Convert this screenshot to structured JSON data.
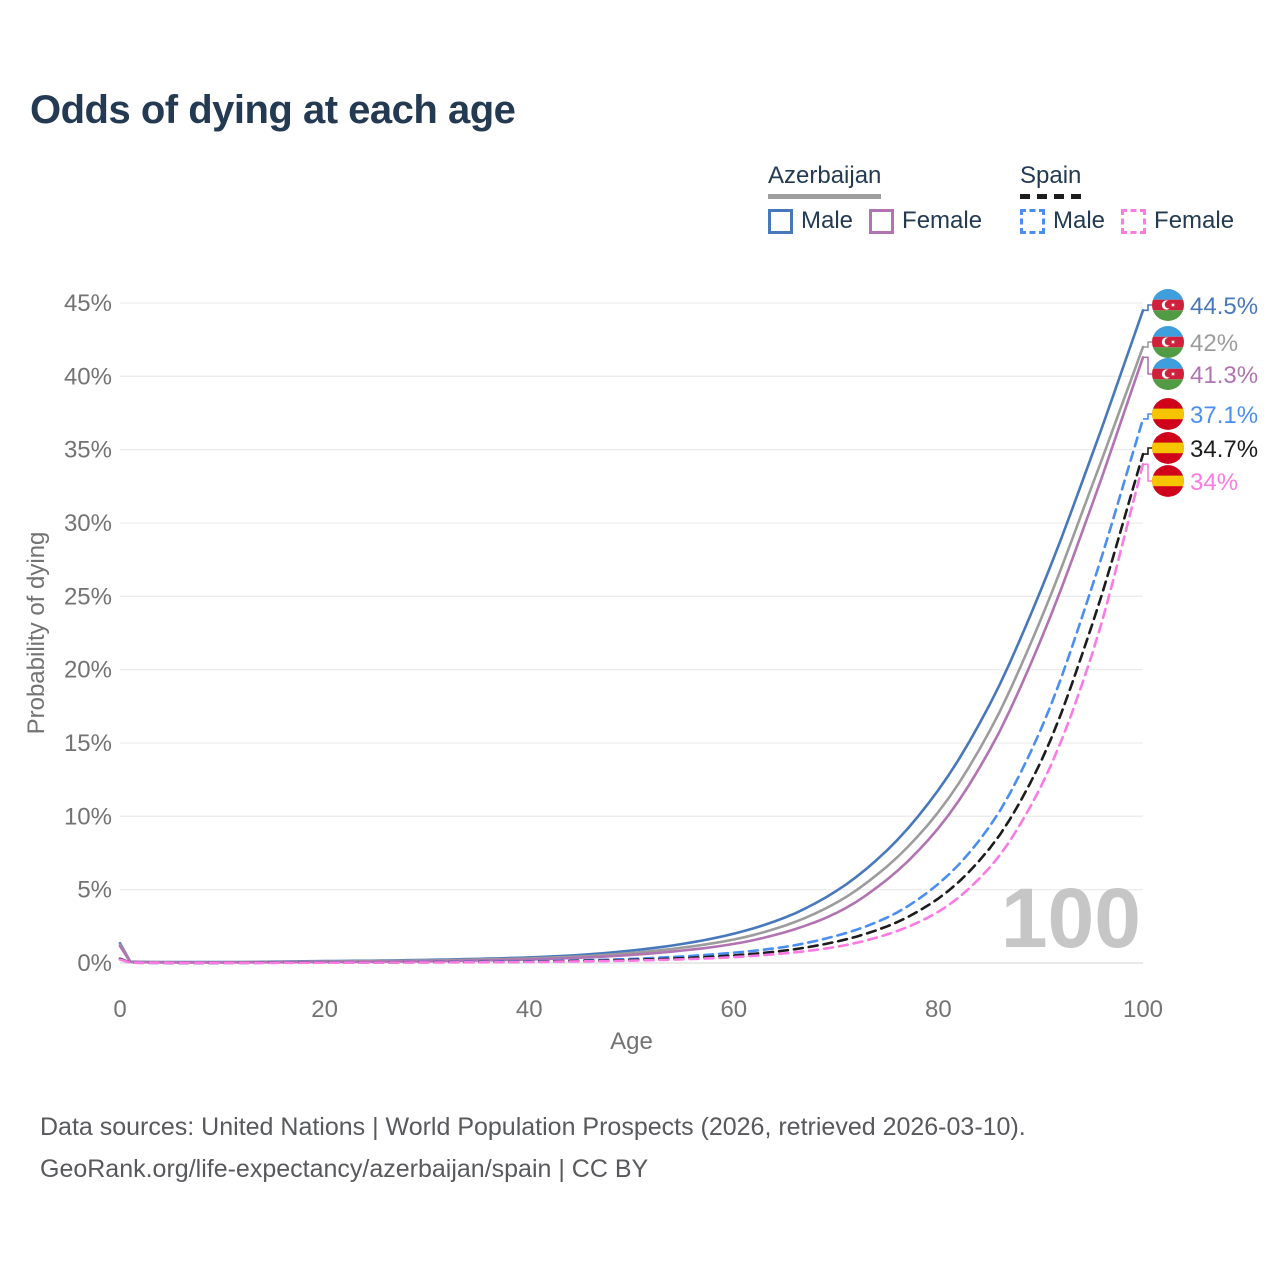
{
  "title": "Odds of dying at each age",
  "legend": {
    "groups": [
      {
        "label": "Azerbaijan",
        "line_style": "solid",
        "underline_color": "#9e9e9e",
        "items": [
          {
            "label": "Male",
            "color": "#4878bc"
          },
          {
            "label": "Female",
            "color": "#b273b2"
          }
        ]
      },
      {
        "label": "Spain",
        "line_style": "dashed",
        "underline_color": "#1c1c1c",
        "items": [
          {
            "label": "Male",
            "color": "#4a8ef2"
          },
          {
            "label": "Female",
            "color": "#fb7ae3"
          }
        ]
      }
    ]
  },
  "chart_data": {
    "type": "line",
    "title": "Odds of dying at each age",
    "xlabel": "Age",
    "ylabel": "Probability of dying",
    "xlim": [
      0,
      100
    ],
    "ylim": [
      0,
      45
    ],
    "x_ticks": [
      0,
      20,
      40,
      60,
      80,
      100
    ],
    "y_tick_labels": [
      "0%",
      "5%",
      "10%",
      "15%",
      "20%",
      "25%",
      "30%",
      "35%",
      "40%",
      "45%"
    ],
    "grid": "horizontal",
    "legend_position": "top-right",
    "watermark": "100",
    "y_unit": "percent",
    "series": [
      {
        "id": "azerbaijan-male",
        "name": "Azerbaijan Male",
        "country": "Azerbaijan",
        "sex": "Male",
        "color": "#4878bc",
        "dash": false,
        "end_label": "44.5%",
        "flag": "azerbaijan",
        "points": [
          [
            0,
            1.35
          ],
          [
            1,
            0.1
          ],
          [
            5,
            0.06
          ],
          [
            10,
            0.06
          ],
          [
            15,
            0.09
          ],
          [
            20,
            0.13
          ],
          [
            25,
            0.16
          ],
          [
            30,
            0.21
          ],
          [
            35,
            0.28
          ],
          [
            40,
            0.38
          ],
          [
            45,
            0.55
          ],
          [
            50,
            0.85
          ],
          [
            55,
            1.3
          ],
          [
            60,
            2.0
          ],
          [
            65,
            3.1
          ],
          [
            70,
            4.9
          ],
          [
            75,
            7.7
          ],
          [
            80,
            11.8
          ],
          [
            85,
            17.6
          ],
          [
            90,
            25.4
          ],
          [
            95,
            34.6
          ],
          [
            100,
            44.5
          ]
        ]
      },
      {
        "id": "azerbaijan-both",
        "name": "Azerbaijan",
        "country": "Azerbaijan",
        "sex": "Both",
        "color": "#9c9c9c",
        "dash": false,
        "end_label": "42%",
        "flag": "azerbaijan",
        "points": [
          [
            0,
            1.25
          ],
          [
            1,
            0.09
          ],
          [
            5,
            0.05
          ],
          [
            10,
            0.05
          ],
          [
            15,
            0.07
          ],
          [
            20,
            0.1
          ],
          [
            25,
            0.13
          ],
          [
            30,
            0.17
          ],
          [
            35,
            0.23
          ],
          [
            40,
            0.31
          ],
          [
            45,
            0.45
          ],
          [
            50,
            0.68
          ],
          [
            55,
            1.05
          ],
          [
            60,
            1.6
          ],
          [
            65,
            2.55
          ],
          [
            70,
            4.1
          ],
          [
            75,
            6.6
          ],
          [
            80,
            10.3
          ],
          [
            85,
            15.8
          ],
          [
            90,
            23.4
          ],
          [
            95,
            32.5
          ],
          [
            100,
            42.0
          ]
        ]
      },
      {
        "id": "azerbaijan-female",
        "name": "Azerbaijan Female",
        "country": "Azerbaijan",
        "sex": "Female",
        "color": "#b273b2",
        "dash": false,
        "end_label": "41.3%",
        "flag": "azerbaijan",
        "points": [
          [
            0,
            1.15
          ],
          [
            1,
            0.08
          ],
          [
            5,
            0.04
          ],
          [
            10,
            0.04
          ],
          [
            15,
            0.05
          ],
          [
            20,
            0.07
          ],
          [
            25,
            0.09
          ],
          [
            30,
            0.12
          ],
          [
            35,
            0.17
          ],
          [
            40,
            0.24
          ],
          [
            45,
            0.36
          ],
          [
            50,
            0.55
          ],
          [
            55,
            0.85
          ],
          [
            60,
            1.3
          ],
          [
            65,
            2.1
          ],
          [
            70,
            3.4
          ],
          [
            75,
            5.7
          ],
          [
            80,
            9.2
          ],
          [
            85,
            14.5
          ],
          [
            90,
            22.0
          ],
          [
            95,
            31.2
          ],
          [
            100,
            41.3
          ]
        ]
      },
      {
        "id": "spain-male",
        "name": "Spain Male",
        "country": "Spain",
        "sex": "Male",
        "color": "#4a8ef2",
        "dash": true,
        "end_label": "37.1%",
        "flag": "spain",
        "points": [
          [
            0,
            0.3
          ],
          [
            1,
            0.03
          ],
          [
            5,
            0.01
          ],
          [
            10,
            0.01
          ],
          [
            15,
            0.02
          ],
          [
            20,
            0.04
          ],
          [
            25,
            0.05
          ],
          [
            30,
            0.06
          ],
          [
            35,
            0.08
          ],
          [
            40,
            0.12
          ],
          [
            45,
            0.18
          ],
          [
            50,
            0.28
          ],
          [
            55,
            0.45
          ],
          [
            60,
            0.7
          ],
          [
            65,
            1.1
          ],
          [
            70,
            1.85
          ],
          [
            75,
            3.1
          ],
          [
            80,
            5.4
          ],
          [
            85,
            9.3
          ],
          [
            90,
            15.9
          ],
          [
            95,
            25.6
          ],
          [
            100,
            37.1
          ]
        ]
      },
      {
        "id": "spain-both",
        "name": "Spain",
        "country": "Spain",
        "sex": "Both",
        "color": "#1c1c1c",
        "dash": true,
        "end_label": "34.7%",
        "flag": "spain",
        "points": [
          [
            0,
            0.27
          ],
          [
            1,
            0.02
          ],
          [
            5,
            0.01
          ],
          [
            10,
            0.01
          ],
          [
            15,
            0.02
          ],
          [
            20,
            0.03
          ],
          [
            25,
            0.04
          ],
          [
            30,
            0.05
          ],
          [
            35,
            0.06
          ],
          [
            40,
            0.09
          ],
          [
            45,
            0.14
          ],
          [
            50,
            0.21
          ],
          [
            55,
            0.33
          ],
          [
            60,
            0.52
          ],
          [
            65,
            0.85
          ],
          [
            70,
            1.45
          ],
          [
            75,
            2.5
          ],
          [
            80,
            4.4
          ],
          [
            85,
            7.8
          ],
          [
            90,
            13.7
          ],
          [
            95,
            23.0
          ],
          [
            100,
            34.7
          ]
        ]
      },
      {
        "id": "spain-female",
        "name": "Spain Female",
        "country": "Spain",
        "sex": "Female",
        "color": "#fb7ae3",
        "dash": true,
        "end_label": "34%",
        "flag": "spain",
        "points": [
          [
            0,
            0.24
          ],
          [
            1,
            0.02
          ],
          [
            5,
            0.01
          ],
          [
            10,
            0.01
          ],
          [
            15,
            0.01
          ],
          [
            20,
            0.02
          ],
          [
            25,
            0.03
          ],
          [
            30,
            0.04
          ],
          [
            35,
            0.05
          ],
          [
            40,
            0.07
          ],
          [
            45,
            0.11
          ],
          [
            50,
            0.16
          ],
          [
            55,
            0.25
          ],
          [
            60,
            0.4
          ],
          [
            65,
            0.66
          ],
          [
            70,
            1.1
          ],
          [
            75,
            1.95
          ],
          [
            80,
            3.5
          ],
          [
            85,
            6.5
          ],
          [
            90,
            12.0
          ],
          [
            95,
            21.0
          ],
          [
            100,
            34.0
          ]
        ]
      }
    ],
    "flag_colors": {
      "azerbaijan": {
        "blue": "#3f9edd",
        "red": "#d0213c",
        "green": "#509b43"
      },
      "spain": {
        "red": "#d0021b",
        "yellow": "#f6c500"
      }
    }
  },
  "footer": {
    "line1": "Data sources: United Nations | World Population Prospects (2026, retrieved 2026-03-10).",
    "line2": "GeoRank.org/life-expectancy/azerbaijan/spain | CC BY"
  }
}
